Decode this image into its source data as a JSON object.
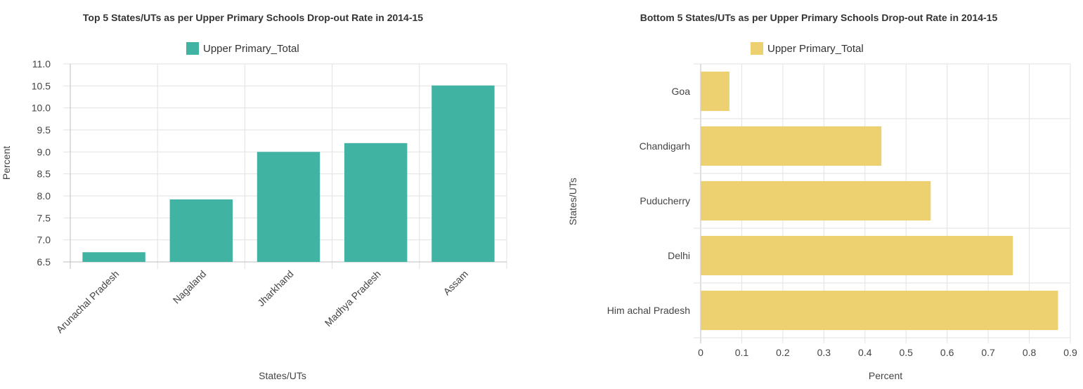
{
  "chart_data": [
    {
      "type": "bar",
      "orientation": "vertical",
      "title": "Top 5 States/UTs as per Upper Primary Schools Drop-out Rate in 2014-15",
      "xlabel": "States/UTs",
      "ylabel": "Percent",
      "categories": [
        "Arunachal Pradesh",
        "Nagaland",
        "Jharkhand",
        "Madhya Pradesh",
        "Assam"
      ],
      "series": [
        {
          "name": "Upper Primary_Total",
          "values": [
            6.72,
            7.92,
            9.0,
            9.2,
            10.51
          ],
          "color": "#41b3a3"
        }
      ],
      "ylim": [
        6.5,
        11.0
      ],
      "yticks": [
        "11.0",
        "10.5",
        "10.0",
        "9.5",
        "9.0",
        "8.5",
        "8.0",
        "7.5",
        "7.0",
        "6.5"
      ],
      "grid": true,
      "legend_position": "top-center"
    },
    {
      "type": "bar",
      "orientation": "horizontal",
      "title": "Bottom 5 States/UTs  as per Upper Primary Schools Drop-out Rate in 2014-15",
      "xlabel": "Percent",
      "ylabel": "States/UTs",
      "categories": [
        "Goa",
        "Chandigarh",
        "Puducherry",
        "Delhi",
        "Him achal Pradesh"
      ],
      "series": [
        {
          "name": "Upper Primary_Total",
          "values": [
            0.07,
            0.44,
            0.56,
            0.76,
            0.87
          ],
          "color": "#edd06f"
        }
      ],
      "xlim": [
        0,
        0.9
      ],
      "xticks": [
        "0",
        "0.1",
        "0.2",
        "0.3",
        "0.4",
        "0.5",
        "0.6",
        "0.7",
        "0.8",
        "0.9"
      ],
      "grid": true,
      "legend_position": "top-center"
    }
  ]
}
